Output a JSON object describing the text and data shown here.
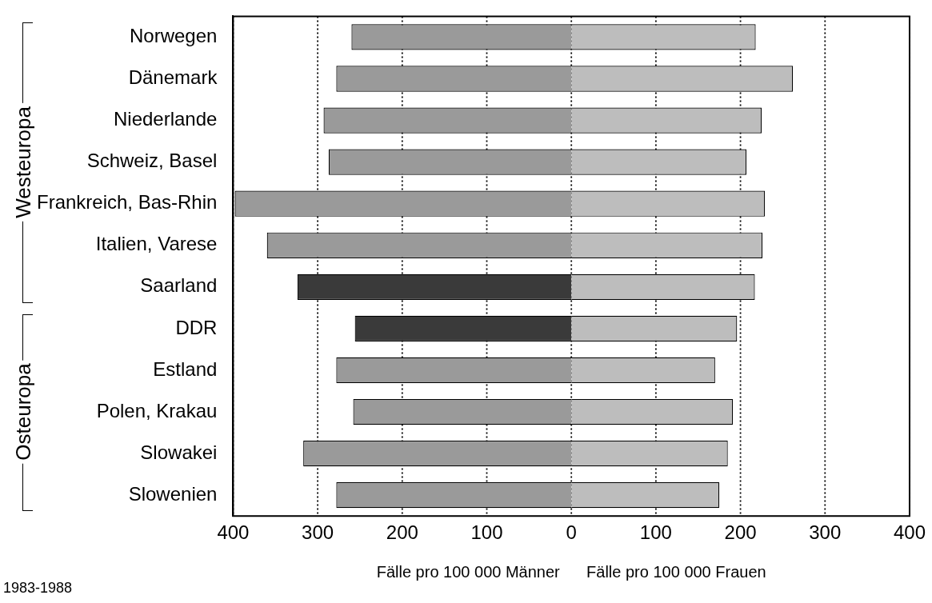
{
  "chart_data": {
    "type": "bar",
    "orientation": "horizontal",
    "stacked": true,
    "categories": [
      "Norwegen",
      "Dänemark",
      "Niederlande",
      "Schweiz, Basel",
      "Frankreich, Bas-Rhin",
      "Italien, Varese",
      "Saarland",
      "DDR",
      "Estland",
      "Polen, Krakau",
      "Slowakei",
      "Slowenien"
    ],
    "series": [
      {
        "colors": [
          "#9a9a9a",
          "#9a9a9a",
          "#9a9a9a",
          "#9a9a9a",
          "#9a9a9a",
          "#9a9a9a",
          "#3a3a3a",
          "#3a3a3a",
          "#9a9a9a",
          "#9a9a9a",
          "#9a9a9a",
          "#9a9a9a"
        ],
        "values": [
          -260,
          -278,
          -293,
          -287,
          -398,
          -360,
          -324,
          -256,
          -278,
          -258,
          -317,
          -278
        ]
      },
      {
        "color": "#bdbdbd",
        "values": [
          218,
          262,
          225,
          207,
          229,
          226,
          217,
          196,
          170,
          191,
          185,
          175
        ]
      }
    ],
    "xlim": [
      -400,
      400
    ],
    "xticks": [
      {
        "value": -400,
        "label": "400"
      },
      {
        "value": -300,
        "label": "300"
      },
      {
        "value": -200,
        "label": "200"
      },
      {
        "value": -100,
        "label": "100"
      },
      0,
      100,
      200,
      300,
      400
    ],
    "xlabel": "Fälle pro 100 000 Männer      Fälle pro 100 000 Frauen",
    "grid": "x",
    "line_style": "dotted",
    "legend": false,
    "annotations": [
      "Westeuropa",
      "Osteuropa",
      "1983-1988"
    ]
  }
}
